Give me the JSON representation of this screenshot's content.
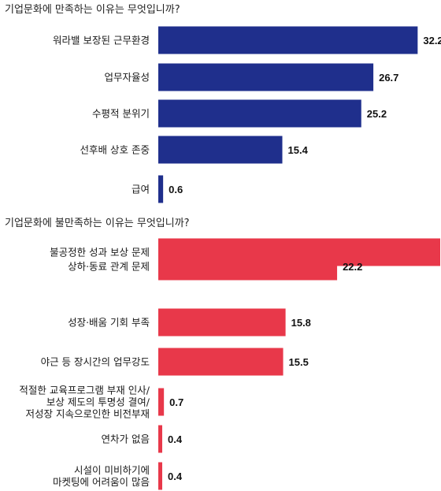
{
  "chart_data": [
    {
      "type": "bar",
      "orientation": "horizontal",
      "title": "기업문화에 만족하는 이유는 무엇입니까?",
      "color": "#1f2f8c",
      "categories": [
        [
          "워라밸 보장된 근무환경"
        ],
        [
          "업무자율성"
        ],
        [
          "수평적 분위기"
        ],
        [
          "선후배 상호 존중"
        ],
        [
          "급여"
        ]
      ],
      "values": [
        32.2,
        26.7,
        25.2,
        15.4,
        0.6
      ],
      "value_labels": [
        "32.2",
        "26.7",
        "25.2",
        "15.4",
        "0.6"
      ],
      "xlim": [
        0,
        40
      ]
    },
    {
      "type": "bar",
      "orientation": "horizontal",
      "title": "기업문화에 불만족하는 이유는 무엇입니까?",
      "color": "#e8384a",
      "categories": [
        [
          "불공정한 성과 보상 문제"
        ],
        [
          "상하·동료 관계 문제"
        ],
        [
          "성장·배움 기회 부족"
        ],
        [
          "야근 등 장시간의 업무강도"
        ],
        [
          "적절한 교육프로그램 부재 인사/",
          "보상 제도의 투명성 결여/",
          "저성장 지속으로인한 비전부재"
        ],
        [
          "연차가 없음"
        ],
        [
          "시설이 미비하기에",
          "마켓팅에 어려움이 많음"
        ]
      ],
      "values": [
        35.0,
        22.2,
        15.8,
        15.5,
        0.7,
        0.4,
        0.4
      ],
      "value_labels": [
        "",
        "22.2",
        "15.8",
        "15.5",
        "0.7",
        "0.4",
        "0.4"
      ],
      "xlim": [
        0,
        40
      ]
    }
  ]
}
